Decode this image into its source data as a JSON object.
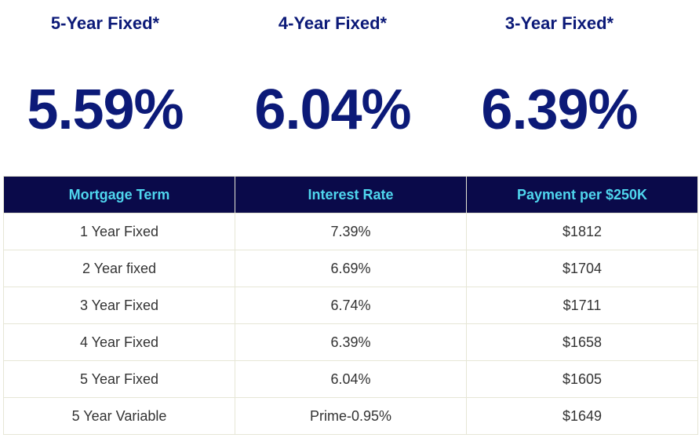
{
  "featured_rates": [
    {
      "title": "5-Year Fixed*",
      "rate": "5.59%"
    },
    {
      "title": "4-Year Fixed*",
      "rate": "6.04%"
    },
    {
      "title": "3-Year Fixed*",
      "rate": "6.39%"
    }
  ],
  "table": {
    "headers": [
      "Mortgage Term",
      "Interest Rate",
      "Payment per $250K"
    ],
    "rows": [
      {
        "term": "1 Year Fixed",
        "rate": "7.39%",
        "payment": "$1812"
      },
      {
        "term": "2 Year fixed",
        "rate": "6.69%",
        "payment": "$1704"
      },
      {
        "term": "3 Year Fixed",
        "rate": "6.74%",
        "payment": "$1711"
      },
      {
        "term": "4 Year Fixed",
        "rate": "6.39%",
        "payment": "$1658"
      },
      {
        "term": "5 Year Fixed",
        "rate": "6.04%",
        "payment": "$1605"
      },
      {
        "term": "5 Year Variable",
        "rate": "Prime-0.95%",
        "payment": "$1649"
      }
    ]
  },
  "colors": {
    "accent_text": "#0c1a78",
    "header_bg": "#0a0a4a",
    "header_text": "#4fd6ee",
    "border": "#e6e6d6"
  }
}
